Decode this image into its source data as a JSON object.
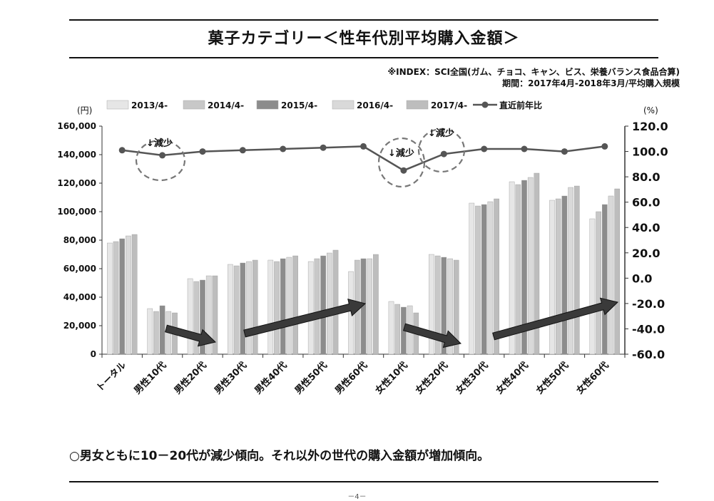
{
  "page": {
    "title": "菓子カテゴリー＜性年代別平均購入金額＞",
    "note_line1": "※INDEX：SCI全国(ガム、チョコ、キャン、ビス、栄養バランス食品合算)",
    "note_line2": "期間：2017年4月-2018年3月/平均購入規模",
    "conclusion": "○男女ともに10－20代が減少傾向。それ以外の世代の購入金額が増加傾向。",
    "page_number": "－4－"
  },
  "chart_data": {
    "type": "bar",
    "categories": [
      "トータル",
      "男性10代",
      "男性20代",
      "男性30代",
      "男性40代",
      "男性50代",
      "男性60代",
      "女性10代",
      "女性20代",
      "女性30代",
      "女性40代",
      "女性50代",
      "女性60代"
    ],
    "series": [
      {
        "name": "2013/4-",
        "values": [
          78000,
          32000,
          53000,
          63000,
          66000,
          65000,
          58000,
          37000,
          70000,
          106000,
          121000,
          108000,
          95000
        ],
        "color": "#e6e6e6"
      },
      {
        "name": "2014/4-",
        "values": [
          79000,
          30000,
          51000,
          62000,
          65000,
          67000,
          66000,
          35000,
          69000,
          104000,
          119000,
          109000,
          100000
        ],
        "color": "#c8c8c8"
      },
      {
        "name": "2015/4-",
        "values": [
          81000,
          34000,
          52000,
          64000,
          67000,
          69000,
          67000,
          33000,
          68000,
          105000,
          122000,
          111000,
          105000
        ],
        "color": "#8c8c8c"
      },
      {
        "name": "2016/4-",
        "values": [
          83000,
          30000,
          55000,
          65000,
          68000,
          71000,
          67000,
          34000,
          67000,
          107000,
          124000,
          117000,
          111000
        ],
        "color": "#d9d9d9"
      },
      {
        "name": "2017/4-",
        "values": [
          84000,
          29000,
          55000,
          66000,
          69000,
          73000,
          70000,
          29000,
          66000,
          109000,
          127000,
          118000,
          116000
        ],
        "color": "#bdbdbd"
      }
    ],
    "line_series": {
      "name": "直近前年比",
      "axis": "right",
      "values": [
        101,
        97,
        100,
        101,
        102,
        103,
        104,
        85,
        98,
        102,
        102,
        100,
        104
      ],
      "color": "#555555"
    },
    "left_axis": {
      "unit_label": "(円)",
      "min": 0,
      "max": 160000,
      "ticks": [
        "0",
        "20,000",
        "40,000",
        "60,000",
        "80,000",
        "100,000",
        "120,000",
        "140,000",
        "160,000"
      ]
    },
    "right_axis": {
      "unit_label": "(%)",
      "min": -60,
      "max": 120,
      "ticks": [
        "-60.0",
        "-40.0",
        "-20.0",
        "0.0",
        "20.0",
        "40.0",
        "60.0",
        "80.0",
        "100.0",
        "120.0"
      ]
    },
    "annotations": [
      {
        "text": "↓減少",
        "category": "男性10代"
      },
      {
        "text": "↓減少",
        "category": "女性10代"
      },
      {
        "text": "↓減少",
        "category": "女性20代"
      }
    ],
    "legend_position": "top"
  }
}
